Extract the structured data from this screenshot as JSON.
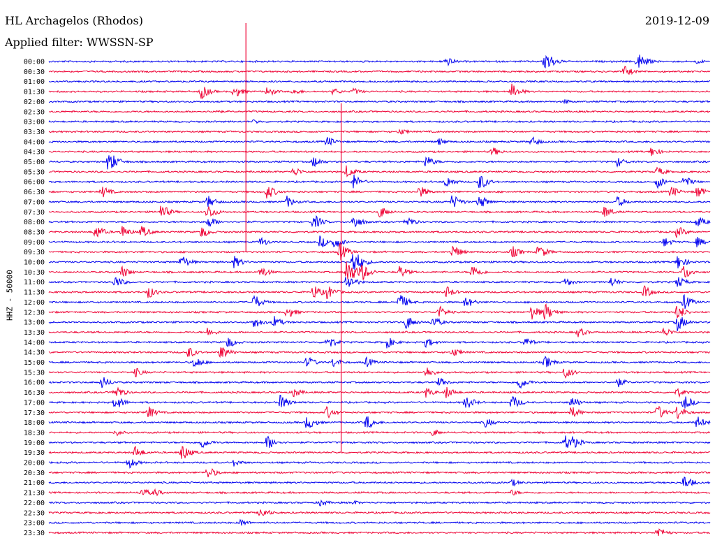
{
  "header": {
    "station": "HL Archagelos (Rhodos)",
    "date": "2019-12-09",
    "filter": "Applied filter: WWSSN-SP"
  },
  "chart_data": {
    "type": "line",
    "title": "HL Archagelos (Rhodos)",
    "ylabel": "HHZ - 50000",
    "colors": {
      "blue": "#0000ee",
      "red": "#ee0033"
    },
    "rows": [
      {
        "label": "00:00",
        "color": "blue",
        "events": [
          {
            "x": 0.6,
            "a": 8
          },
          {
            "x": 0.75,
            "a": 18
          },
          {
            "x": 0.89,
            "a": 16
          },
          {
            "x": 0.98,
            "a": 4
          }
        ]
      },
      {
        "label": "00:30",
        "color": "red",
        "events": [
          {
            "x": 0.87,
            "a": 9
          }
        ]
      },
      {
        "label": "01:00",
        "color": "blue",
        "events": []
      },
      {
        "label": "01:30",
        "color": "red",
        "events": [
          {
            "x": 0.23,
            "a": 12
          },
          {
            "x": 0.28,
            "a": 10
          },
          {
            "x": 0.33,
            "a": 8
          },
          {
            "x": 0.37,
            "a": 6
          },
          {
            "x": 0.43,
            "a": 6
          },
          {
            "x": 0.46,
            "a": 6
          },
          {
            "x": 0.7,
            "a": 12
          }
        ]
      },
      {
        "label": "02:00",
        "color": "blue",
        "events": [
          {
            "x": 0.78,
            "a": 4
          }
        ]
      },
      {
        "label": "02:30",
        "color": "red",
        "events": [
          {
            "x": 0.25,
            "a": 4
          }
        ]
      },
      {
        "label": "03:00",
        "color": "blue",
        "events": [
          {
            "x": 0.31,
            "a": 4
          }
        ]
      },
      {
        "label": "03:30",
        "color": "red",
        "events": [
          {
            "x": 0.53,
            "a": 6
          }
        ]
      },
      {
        "label": "04:00",
        "color": "blue",
        "events": [
          {
            "x": 0.42,
            "a": 9
          },
          {
            "x": 0.59,
            "a": 6
          },
          {
            "x": 0.73,
            "a": 8
          }
        ]
      },
      {
        "label": "04:30",
        "color": "red",
        "events": [
          {
            "x": 0.67,
            "a": 8
          },
          {
            "x": 0.91,
            "a": 8
          }
        ]
      },
      {
        "label": "05:00",
        "color": "blue",
        "events": [
          {
            "x": 0.09,
            "a": 18
          },
          {
            "x": 0.4,
            "a": 9
          },
          {
            "x": 0.57,
            "a": 10
          },
          {
            "x": 0.86,
            "a": 8
          }
        ]
      },
      {
        "label": "05:30",
        "color": "red",
        "events": [
          {
            "x": 0.37,
            "a": 8
          },
          {
            "x": 0.45,
            "a": 10
          },
          {
            "x": 0.92,
            "a": 8
          }
        ]
      },
      {
        "label": "06:00",
        "color": "blue",
        "events": [
          {
            "x": 0.46,
            "a": 12
          },
          {
            "x": 0.6,
            "a": 10
          },
          {
            "x": 0.65,
            "a": 14
          },
          {
            "x": 0.92,
            "a": 10
          },
          {
            "x": 0.96,
            "a": 10
          }
        ]
      },
      {
        "label": "06:30",
        "color": "red",
        "events": [
          {
            "x": 0.08,
            "a": 10
          },
          {
            "x": 0.33,
            "a": 12
          },
          {
            "x": 0.56,
            "a": 10
          },
          {
            "x": 0.94,
            "a": 10
          },
          {
            "x": 0.98,
            "a": 10
          }
        ]
      },
      {
        "label": "07:00",
        "color": "blue",
        "events": [
          {
            "x": 0.24,
            "a": 10
          },
          {
            "x": 0.36,
            "a": 9
          },
          {
            "x": 0.61,
            "a": 12
          },
          {
            "x": 0.65,
            "a": 12
          },
          {
            "x": 0.86,
            "a": 9
          }
        ]
      },
      {
        "label": "07:30",
        "color": "red",
        "events": [
          {
            "x": 0.17,
            "a": 12
          },
          {
            "x": 0.24,
            "a": 12
          },
          {
            "x": 0.5,
            "a": 10
          },
          {
            "x": 0.84,
            "a": 10
          }
        ]
      },
      {
        "label": "08:00",
        "color": "blue",
        "events": [
          {
            "x": 0.24,
            "a": 10
          },
          {
            "x": 0.4,
            "a": 12
          },
          {
            "x": 0.46,
            "a": 12
          },
          {
            "x": 0.54,
            "a": 10
          },
          {
            "x": 0.98,
            "a": 10
          }
        ]
      },
      {
        "label": "08:30",
        "color": "red",
        "events": [
          {
            "x": 0.07,
            "a": 12
          },
          {
            "x": 0.11,
            "a": 10
          },
          {
            "x": 0.14,
            "a": 10
          },
          {
            "x": 0.23,
            "a": 10
          },
          {
            "x": 0.95,
            "a": 10
          }
        ]
      },
      {
        "label": "09:00",
        "color": "blue",
        "events": [
          {
            "x": 0.32,
            "a": 8
          },
          {
            "x": 0.41,
            "a": 10
          },
          {
            "x": 0.43,
            "a": 12
          },
          {
            "x": 0.93,
            "a": 8
          },
          {
            "x": 0.98,
            "a": 8
          }
        ]
      },
      {
        "label": "09:30",
        "color": "red",
        "events": [
          {
            "x": 0.44,
            "a": 14
          },
          {
            "x": 0.61,
            "a": 12
          },
          {
            "x": 0.7,
            "a": 10
          },
          {
            "x": 0.74,
            "a": 12
          }
        ]
      },
      {
        "label": "10:00",
        "color": "blue",
        "events": [
          {
            "x": 0.2,
            "a": 12
          },
          {
            "x": 0.28,
            "a": 10
          },
          {
            "x": 0.46,
            "a": 22
          },
          {
            "x": 0.95,
            "a": 12
          }
        ]
      },
      {
        "label": "10:30",
        "color": "red",
        "events": [
          {
            "x": 0.11,
            "a": 10
          },
          {
            "x": 0.32,
            "a": 10
          },
          {
            "x": 0.45,
            "a": 22
          },
          {
            "x": 0.47,
            "a": 18
          },
          {
            "x": 0.53,
            "a": 10
          },
          {
            "x": 0.64,
            "a": 12
          },
          {
            "x": 0.96,
            "a": 12
          }
        ]
      },
      {
        "label": "11:00",
        "color": "blue",
        "events": [
          {
            "x": 0.1,
            "a": 10
          },
          {
            "x": 0.45,
            "a": 14
          },
          {
            "x": 0.78,
            "a": 8
          },
          {
            "x": 0.85,
            "a": 8
          },
          {
            "x": 0.95,
            "a": 10
          }
        ]
      },
      {
        "label": "11:30",
        "color": "red",
        "events": [
          {
            "x": 0.15,
            "a": 10
          },
          {
            "x": 0.4,
            "a": 12
          },
          {
            "x": 0.42,
            "a": 12
          },
          {
            "x": 0.6,
            "a": 10
          },
          {
            "x": 0.9,
            "a": 10
          }
        ]
      },
      {
        "label": "12:00",
        "color": "blue",
        "events": [
          {
            "x": 0.31,
            "a": 12
          },
          {
            "x": 0.53,
            "a": 14
          },
          {
            "x": 0.63,
            "a": 10
          },
          {
            "x": 0.96,
            "a": 12
          }
        ]
      },
      {
        "label": "12:30",
        "color": "red",
        "events": [
          {
            "x": 0.36,
            "a": 10
          },
          {
            "x": 0.59,
            "a": 10
          },
          {
            "x": 0.73,
            "a": 12
          },
          {
            "x": 0.75,
            "a": 14
          },
          {
            "x": 0.95,
            "a": 12
          }
        ]
      },
      {
        "label": "13:00",
        "color": "blue",
        "events": [
          {
            "x": 0.31,
            "a": 10
          },
          {
            "x": 0.34,
            "a": 10
          },
          {
            "x": 0.54,
            "a": 12
          },
          {
            "x": 0.58,
            "a": 10
          },
          {
            "x": 0.95,
            "a": 14
          }
        ]
      },
      {
        "label": "13:30",
        "color": "red",
        "events": [
          {
            "x": 0.24,
            "a": 8
          },
          {
            "x": 0.8,
            "a": 8
          },
          {
            "x": 0.93,
            "a": 8
          }
        ]
      },
      {
        "label": "14:00",
        "color": "blue",
        "events": [
          {
            "x": 0.27,
            "a": 10
          },
          {
            "x": 0.42,
            "a": 12
          },
          {
            "x": 0.51,
            "a": 10
          },
          {
            "x": 0.57,
            "a": 8
          },
          {
            "x": 0.72,
            "a": 8
          }
        ]
      },
      {
        "label": "14:30",
        "color": "red",
        "events": [
          {
            "x": 0.21,
            "a": 10
          },
          {
            "x": 0.26,
            "a": 12
          },
          {
            "x": 0.61,
            "a": 8
          }
        ]
      },
      {
        "label": "15:00",
        "color": "blue",
        "events": [
          {
            "x": 0.22,
            "a": 10
          },
          {
            "x": 0.39,
            "a": 10
          },
          {
            "x": 0.43,
            "a": 8
          },
          {
            "x": 0.48,
            "a": 8
          },
          {
            "x": 0.75,
            "a": 10
          }
        ]
      },
      {
        "label": "15:30",
        "color": "red",
        "events": [
          {
            "x": 0.13,
            "a": 8
          },
          {
            "x": 0.57,
            "a": 10
          },
          {
            "x": 0.78,
            "a": 10
          }
        ]
      },
      {
        "label": "16:00",
        "color": "blue",
        "events": [
          {
            "x": 0.08,
            "a": 10
          },
          {
            "x": 0.59,
            "a": 8
          },
          {
            "x": 0.71,
            "a": 12
          },
          {
            "x": 0.86,
            "a": 8
          }
        ]
      },
      {
        "label": "16:30",
        "color": "red",
        "events": [
          {
            "x": 0.1,
            "a": 12
          },
          {
            "x": 0.37,
            "a": 8
          },
          {
            "x": 0.57,
            "a": 8
          },
          {
            "x": 0.6,
            "a": 10
          },
          {
            "x": 0.95,
            "a": 8
          }
        ]
      },
      {
        "label": "17:00",
        "color": "blue",
        "events": [
          {
            "x": 0.1,
            "a": 12
          },
          {
            "x": 0.35,
            "a": 12
          },
          {
            "x": 0.63,
            "a": 12
          },
          {
            "x": 0.7,
            "a": 12
          },
          {
            "x": 0.79,
            "a": 10
          },
          {
            "x": 0.96,
            "a": 12
          }
        ]
      },
      {
        "label": "17:30",
        "color": "red",
        "events": [
          {
            "x": 0.15,
            "a": 10
          },
          {
            "x": 0.42,
            "a": 10
          },
          {
            "x": 0.79,
            "a": 10
          },
          {
            "x": 0.92,
            "a": 12
          },
          {
            "x": 0.95,
            "a": 12
          }
        ]
      },
      {
        "label": "18:00",
        "color": "blue",
        "events": [
          {
            "x": 0.39,
            "a": 12
          },
          {
            "x": 0.48,
            "a": 12
          },
          {
            "x": 0.66,
            "a": 8
          },
          {
            "x": 0.98,
            "a": 10
          }
        ]
      },
      {
        "label": "18:30",
        "color": "red",
        "events": [
          {
            "x": 0.1,
            "a": 6
          },
          {
            "x": 0.58,
            "a": 6
          }
        ]
      },
      {
        "label": "19:00",
        "color": "blue",
        "events": [
          {
            "x": 0.23,
            "a": 10
          },
          {
            "x": 0.33,
            "a": 12
          },
          {
            "x": 0.78,
            "a": 12
          },
          {
            "x": 0.79,
            "a": 12
          }
        ]
      },
      {
        "label": "19:30",
        "color": "red",
        "events": [
          {
            "x": 0.13,
            "a": 10
          },
          {
            "x": 0.2,
            "a": 14
          }
        ]
      },
      {
        "label": "20:00",
        "color": "blue",
        "events": [
          {
            "x": 0.12,
            "a": 10
          },
          {
            "x": 0.28,
            "a": 6
          }
        ]
      },
      {
        "label": "20:30",
        "color": "red",
        "events": [
          {
            "x": 0.24,
            "a": 10
          }
        ]
      },
      {
        "label": "21:00",
        "color": "blue",
        "events": [
          {
            "x": 0.7,
            "a": 6
          },
          {
            "x": 0.96,
            "a": 12
          }
        ]
      },
      {
        "label": "21:30",
        "color": "red",
        "events": [
          {
            "x": 0.14,
            "a": 8
          },
          {
            "x": 0.16,
            "a": 6
          },
          {
            "x": 0.7,
            "a": 5
          }
        ]
      },
      {
        "label": "22:00",
        "color": "blue",
        "events": [
          {
            "x": 0.41,
            "a": 6
          },
          {
            "x": 0.46,
            "a": 4
          }
        ]
      },
      {
        "label": "22:30",
        "color": "red",
        "events": [
          {
            "x": 0.32,
            "a": 10
          }
        ]
      },
      {
        "label": "23:00",
        "color": "blue",
        "events": [
          {
            "x": 0.29,
            "a": 6
          }
        ]
      },
      {
        "label": "23:30",
        "color": "red",
        "events": [
          {
            "x": 0.92,
            "a": 10
          }
        ]
      }
    ],
    "spikes": [
      {
        "x": 0.298,
        "from_row": 0,
        "to_row": 19
      },
      {
        "x": 0.442,
        "from_row": 8,
        "to_row": 39
      }
    ]
  }
}
